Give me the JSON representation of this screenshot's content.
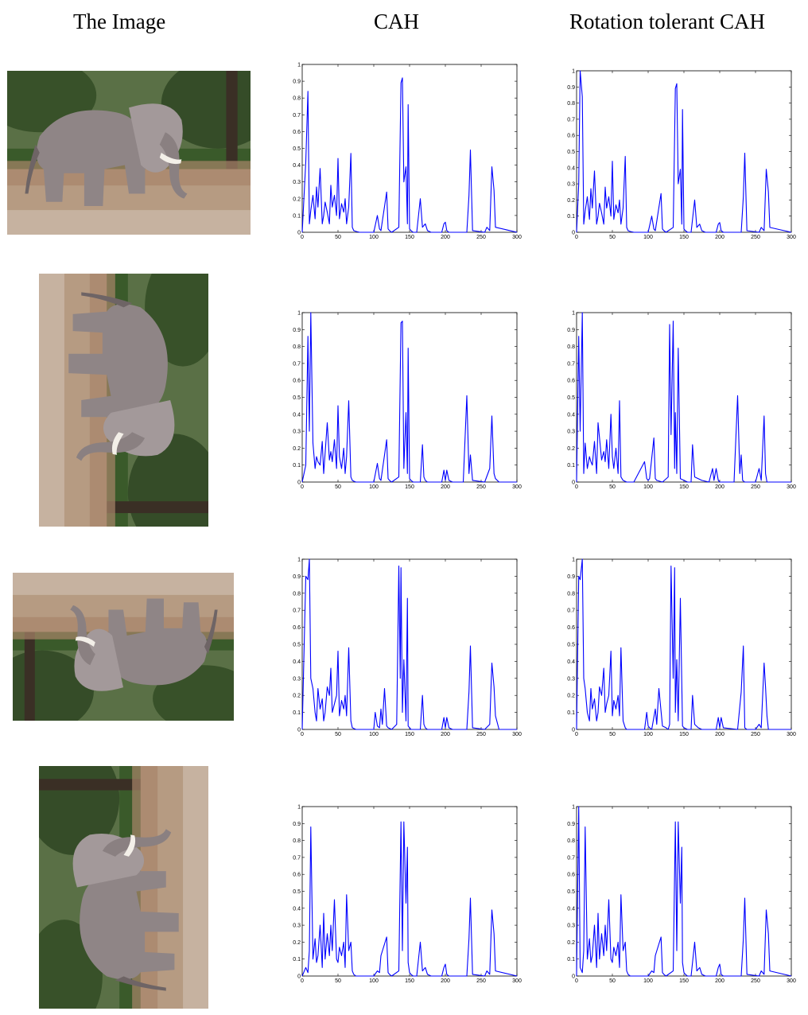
{
  "headers": {
    "image": "The Image",
    "cah": "CAH",
    "rotation": "Rotation tolerant CAH"
  },
  "colors": {
    "series": "#0000ff",
    "sky_foliage": "#3a5a2a",
    "ground": "#b69b82",
    "elephant": "#8f8586"
  },
  "image_rotations_deg": [
    0,
    90,
    180,
    270
  ],
  "chart_data": [
    {
      "row": 1,
      "column": "CAH",
      "type": "line",
      "xlim": [
        0,
        300
      ],
      "ylim": [
        0,
        1
      ],
      "xticks": [
        "0",
        "50",
        "100",
        "150",
        "200",
        "250",
        "300"
      ],
      "yticks": [
        "0",
        "0.1",
        "0.2",
        "0.3",
        "0.4",
        "0.5",
        "0.6",
        "0.7",
        "0.8",
        "0.9",
        "1"
      ],
      "x": [
        0,
        5,
        8,
        10,
        12,
        15,
        18,
        20,
        22,
        25,
        28,
        30,
        32,
        35,
        38,
        40,
        42,
        45,
        48,
        50,
        52,
        55,
        58,
        60,
        62,
        65,
        68,
        70,
        72,
        75,
        80,
        100,
        105,
        108,
        110,
        118,
        120,
        122,
        125,
        135,
        138,
        140,
        142,
        145,
        147,
        148,
        150,
        152,
        155,
        160,
        165,
        168,
        172,
        175,
        180,
        195,
        198,
        200,
        202,
        205,
        230,
        233,
        235,
        238,
        255,
        258,
        262,
        265,
        268,
        270,
        300
      ],
      "y": [
        0,
        0.42,
        0.84,
        0.05,
        0.13,
        0.22,
        0.08,
        0.27,
        0.15,
        0.38,
        0.05,
        0.1,
        0.18,
        0.12,
        0.05,
        0.28,
        0.15,
        0.22,
        0.1,
        0.44,
        0.08,
        0.17,
        0.12,
        0.2,
        0.05,
        0.15,
        0.47,
        0.03,
        0.01,
        0.005,
        0,
        0,
        0.1,
        0.02,
        0.01,
        0.24,
        0.02,
        0.01,
        0,
        0.03,
        0.89,
        0.92,
        0.3,
        0.39,
        0.05,
        0.76,
        0.02,
        0.01,
        0,
        0,
        0.2,
        0.03,
        0.05,
        0.01,
        0,
        0,
        0.05,
        0.06,
        0.01,
        0,
        0,
        0.22,
        0.49,
        0.01,
        0,
        0.03,
        0.01,
        0.39,
        0.25,
        0.03,
        0
      ]
    },
    {
      "row": 1,
      "column": "Rotation tolerant CAH",
      "type": "line",
      "xlim": [
        0,
        300
      ],
      "ylim": [
        0,
        1
      ],
      "xticks": [
        "0",
        "50",
        "100",
        "150",
        "200",
        "250",
        "300"
      ],
      "yticks": [
        "0",
        "0.1",
        "0.2",
        "0.3",
        "0.4",
        "0.5",
        "0.6",
        "0.7",
        "0.8",
        "0.9",
        "1"
      ],
      "x": [
        0,
        3,
        5,
        8,
        10,
        12,
        15,
        18,
        20,
        22,
        25,
        28,
        30,
        32,
        35,
        38,
        40,
        42,
        45,
        48,
        50,
        52,
        55,
        58,
        60,
        62,
        65,
        68,
        70,
        72,
        75,
        80,
        100,
        105,
        108,
        110,
        118,
        120,
        122,
        125,
        135,
        138,
        140,
        142,
        145,
        147,
        148,
        150,
        152,
        155,
        160,
        165,
        168,
        172,
        175,
        180,
        195,
        198,
        200,
        202,
        205,
        230,
        233,
        235,
        238,
        255,
        258,
        262,
        265,
        268,
        270,
        300
      ],
      "y": [
        0,
        0.3,
        1,
        0.84,
        0.05,
        0.13,
        0.22,
        0.08,
        0.27,
        0.15,
        0.38,
        0.05,
        0.1,
        0.18,
        0.12,
        0.05,
        0.28,
        0.15,
        0.22,
        0.1,
        0.44,
        0.08,
        0.17,
        0.12,
        0.2,
        0.05,
        0.15,
        0.47,
        0.03,
        0.01,
        0.005,
        0,
        0,
        0.1,
        0.02,
        0.01,
        0.24,
        0.02,
        0.01,
        0,
        0.03,
        0.89,
        0.92,
        0.3,
        0.39,
        0.05,
        0.76,
        0.02,
        0.01,
        0,
        0,
        0.2,
        0.03,
        0.05,
        0.01,
        0,
        0,
        0.05,
        0.06,
        0.01,
        0,
        0,
        0.22,
        0.49,
        0.01,
        0,
        0.03,
        0.01,
        0.39,
        0.25,
        0.03,
        0
      ]
    },
    {
      "row": 2,
      "column": "CAH",
      "type": "line",
      "xlim": [
        0,
        300
      ],
      "ylim": [
        0,
        1
      ],
      "xticks": [
        "0",
        "50",
        "100",
        "150",
        "200",
        "250",
        "300"
      ],
      "yticks": [
        "0",
        "0.1",
        "0.2",
        "0.3",
        "0.4",
        "0.5",
        "0.6",
        "0.7",
        "0.8",
        "0.9",
        "1"
      ],
      "x": [
        0,
        5,
        8,
        10,
        12,
        15,
        18,
        20,
        22,
        25,
        28,
        30,
        35,
        38,
        40,
        42,
        45,
        48,
        50,
        52,
        55,
        58,
        60,
        62,
        65,
        68,
        70,
        72,
        75,
        80,
        100,
        105,
        108,
        110,
        118,
        120,
        122,
        125,
        135,
        138,
        140,
        142,
        145,
        147,
        148,
        150,
        152,
        155,
        165,
        168,
        170,
        172,
        175,
        180,
        195,
        198,
        200,
        202,
        205,
        210,
        225,
        230,
        233,
        235,
        238,
        255,
        262,
        265,
        268,
        270,
        275,
        300
      ],
      "y": [
        0,
        0.1,
        0.86,
        0.3,
        1,
        0.23,
        0.08,
        0.15,
        0.12,
        0.1,
        0.24,
        0.05,
        0.35,
        0.13,
        0.18,
        0.12,
        0.25,
        0.08,
        0.45,
        0.15,
        0.08,
        0.2,
        0.05,
        0.15,
        0.48,
        0.03,
        0.01,
        0.005,
        0,
        0,
        0,
        0.11,
        0.02,
        0.01,
        0.25,
        0.02,
        0.01,
        0,
        0.03,
        0.94,
        0.95,
        0.08,
        0.41,
        0.05,
        0.79,
        0.02,
        0.01,
        0,
        0,
        0.22,
        0.03,
        0.01,
        0,
        0,
        0,
        0.07,
        0.01,
        0.07,
        0.01,
        0,
        0,
        0.51,
        0.05,
        0.16,
        0.01,
        0,
        0.08,
        0.39,
        0.05,
        0.02,
        0,
        0
      ]
    },
    {
      "row": 2,
      "column": "Rotation tolerant CAH",
      "type": "line",
      "xlim": [
        0,
        300
      ],
      "ylim": [
        0,
        1
      ],
      "xticks": [
        "0",
        "50",
        "100",
        "150",
        "200",
        "250",
        "300"
      ],
      "yticks": [
        "0",
        "0.1",
        "0.2",
        "0.3",
        "0.4",
        "0.5",
        "0.6",
        "0.7",
        "0.8",
        "0.9",
        "1"
      ],
      "x": [
        0,
        3,
        5,
        8,
        10,
        12,
        15,
        18,
        20,
        22,
        25,
        28,
        30,
        35,
        38,
        40,
        42,
        45,
        48,
        50,
        52,
        55,
        58,
        60,
        62,
        65,
        70,
        80,
        95,
        98,
        100,
        102,
        108,
        110,
        112,
        120,
        128,
        130,
        132,
        135,
        137,
        138,
        140,
        142,
        145,
        155,
        160,
        162,
        165,
        175,
        185,
        190,
        192,
        195,
        198,
        200,
        205,
        220,
        225,
        228,
        230,
        232,
        235,
        250,
        255,
        258,
        262,
        264,
        266,
        300
      ],
      "y": [
        0,
        0.86,
        0.3,
        1,
        0.05,
        0.23,
        0.08,
        0.15,
        0.12,
        0.1,
        0.24,
        0.05,
        0.35,
        0.13,
        0.18,
        0.12,
        0.25,
        0.08,
        0.4,
        0.15,
        0.08,
        0.2,
        0.05,
        0.48,
        0.03,
        0.01,
        0,
        0,
        0.12,
        0.02,
        0.01,
        0.02,
        0.26,
        0.02,
        0.01,
        0,
        0.03,
        0.93,
        0.28,
        0.95,
        0.08,
        0.41,
        0.05,
        0.79,
        0.02,
        0,
        0,
        0.22,
        0.03,
        0.01,
        0,
        0.08,
        0.01,
        0.08,
        0.01,
        0,
        0,
        0,
        0.51,
        0.05,
        0.16,
        0.01,
        0,
        0,
        0.08,
        0.01,
        0.39,
        0.05,
        0,
        0
      ]
    },
    {
      "row": 3,
      "column": "CAH",
      "type": "line",
      "xlim": [
        0,
        300
      ],
      "ylim": [
        0,
        1
      ],
      "xticks": [
        "0",
        "50",
        "100",
        "150",
        "200",
        "250",
        "300"
      ],
      "yticks": [
        "0",
        "0.1",
        "0.2",
        "0.3",
        "0.4",
        "0.5",
        "0.6",
        "0.7",
        "0.8",
        "0.9",
        "1"
      ],
      "x": [
        0,
        5,
        8,
        10,
        12,
        15,
        18,
        20,
        22,
        25,
        28,
        30,
        32,
        35,
        38,
        40,
        42,
        45,
        48,
        50,
        52,
        55,
        58,
        60,
        62,
        65,
        68,
        70,
        75,
        80,
        100,
        102,
        105,
        108,
        110,
        112,
        115,
        118,
        120,
        125,
        132,
        135,
        137,
        138,
        140,
        142,
        145,
        147,
        148,
        150,
        152,
        155,
        165,
        168,
        170,
        172,
        175,
        180,
        195,
        198,
        200,
        202,
        205,
        210,
        230,
        233,
        235,
        238,
        255,
        262,
        265,
        268,
        270,
        275,
        300
      ],
      "y": [
        0,
        0.9,
        0.88,
        1,
        0.3,
        0.24,
        0.1,
        0.05,
        0.24,
        0.12,
        0.18,
        0.05,
        0.1,
        0.25,
        0.2,
        0.36,
        0.1,
        0.15,
        0.2,
        0.46,
        0.08,
        0.17,
        0.12,
        0.2,
        0.08,
        0.48,
        0.05,
        0.01,
        0,
        0,
        0,
        0.1,
        0.02,
        0.01,
        0.12,
        0.03,
        0.24,
        0.02,
        0.01,
        0,
        0.03,
        0.96,
        0.3,
        0.95,
        0.1,
        0.41,
        0.05,
        0.77,
        0.02,
        0.01,
        0,
        0,
        0,
        0.2,
        0.03,
        0.01,
        0,
        0,
        0,
        0.07,
        0.01,
        0.07,
        0.01,
        0,
        0,
        0.22,
        0.49,
        0.01,
        0,
        0.03,
        0.39,
        0.25,
        0.08,
        0,
        0
      ]
    },
    {
      "row": 3,
      "column": "Rotation tolerant CAH",
      "type": "line",
      "xlim": [
        0,
        300
      ],
      "ylim": [
        0,
        1
      ],
      "xticks": [
        "0",
        "50",
        "100",
        "150",
        "200",
        "250",
        "300"
      ],
      "yticks": [
        "0",
        "0.1",
        "0.2",
        "0.3",
        "0.4",
        "0.5",
        "0.6",
        "0.7",
        "0.8",
        "0.9",
        "1"
      ],
      "x": [
        0,
        3,
        5,
        8,
        10,
        12,
        15,
        18,
        20,
        22,
        25,
        28,
        30,
        32,
        35,
        38,
        40,
        42,
        45,
        48,
        50,
        52,
        55,
        58,
        60,
        62,
        65,
        68,
        70,
        75,
        95,
        98,
        100,
        102,
        105,
        110,
        112,
        115,
        120,
        125,
        128,
        130,
        132,
        135,
        137,
        138,
        140,
        142,
        145,
        148,
        150,
        155,
        160,
        162,
        165,
        170,
        175,
        185,
        195,
        198,
        200,
        202,
        205,
        225,
        230,
        233,
        235,
        238,
        250,
        255,
        258,
        262,
        264,
        266,
        268,
        300
      ],
      "y": [
        0,
        0.9,
        0.88,
        1,
        0.3,
        0.24,
        0.1,
        0.05,
        0.24,
        0.12,
        0.18,
        0.05,
        0.1,
        0.25,
        0.2,
        0.36,
        0.1,
        0.15,
        0.2,
        0.46,
        0.08,
        0.17,
        0.12,
        0.2,
        0.08,
        0.48,
        0.05,
        0.01,
        0,
        0,
        0,
        0.1,
        0.02,
        0.01,
        0,
        0.12,
        0.03,
        0.24,
        0.02,
        0.01,
        0,
        0.03,
        0.96,
        0.3,
        0.95,
        0.1,
        0.41,
        0.05,
        0.77,
        0.02,
        0.01,
        0,
        0,
        0.2,
        0.03,
        0.01,
        0,
        0,
        0,
        0.07,
        0.01,
        0.07,
        0.01,
        0,
        0.22,
        0.49,
        0.01,
        0,
        0,
        0.03,
        0.01,
        0.39,
        0.25,
        0.08,
        0,
        0
      ]
    },
    {
      "row": 4,
      "column": "CAH",
      "type": "line",
      "xlim": [
        0,
        300
      ],
      "ylim": [
        0,
        1
      ],
      "xticks": [
        "0",
        "50",
        "100",
        "150",
        "200",
        "250",
        "300"
      ],
      "yticks": [
        "0",
        "0.1",
        "0.2",
        "0.3",
        "0.4",
        "0.5",
        "0.6",
        "0.7",
        "0.8",
        "0.9",
        "1"
      ],
      "x": [
        0,
        5,
        8,
        10,
        12,
        15,
        18,
        20,
        22,
        25,
        28,
        30,
        32,
        35,
        38,
        40,
        42,
        45,
        48,
        50,
        52,
        55,
        58,
        60,
        62,
        65,
        68,
        70,
        72,
        75,
        80,
        100,
        105,
        108,
        110,
        118,
        120,
        122,
        125,
        135,
        138,
        140,
        142,
        145,
        147,
        148,
        150,
        152,
        155,
        160,
        165,
        168,
        172,
        175,
        180,
        195,
        198,
        200,
        202,
        205,
        230,
        233,
        235,
        238,
        255,
        258,
        262,
        265,
        268,
        270,
        300
      ],
      "y": [
        0,
        0.05,
        0.02,
        0.15,
        0.88,
        0.1,
        0.22,
        0.08,
        0.12,
        0.3,
        0.05,
        0.37,
        0.1,
        0.25,
        0.12,
        0.3,
        0.15,
        0.45,
        0.1,
        0.08,
        0.17,
        0.12,
        0.2,
        0.05,
        0.48,
        0.15,
        0.2,
        0.03,
        0.01,
        0,
        0,
        0,
        0.03,
        0.02,
        0.12,
        0.23,
        0.02,
        0.01,
        0,
        0.03,
        0.91,
        0.15,
        0.91,
        0.43,
        0.76,
        0.08,
        0.02,
        0.01,
        0,
        0,
        0.2,
        0.03,
        0.05,
        0.01,
        0,
        0,
        0.05,
        0.07,
        0.01,
        0,
        0,
        0.22,
        0.46,
        0.01,
        0,
        0.03,
        0.01,
        0.39,
        0.25,
        0.03,
        0
      ]
    },
    {
      "row": 4,
      "column": "Rotation tolerant CAH",
      "type": "line",
      "xlim": [
        0,
        300
      ],
      "ylim": [
        0,
        1
      ],
      "xticks": [
        "0",
        "50",
        "100",
        "150",
        "200",
        "250",
        "300"
      ],
      "yticks": [
        "0",
        "0.1",
        "0.2",
        "0.3",
        "0.4",
        "0.5",
        "0.6",
        "0.7",
        "0.8",
        "0.9",
        "1"
      ],
      "x": [
        0,
        3,
        5,
        8,
        10,
        12,
        15,
        18,
        20,
        22,
        25,
        28,
        30,
        32,
        35,
        38,
        40,
        42,
        45,
        48,
        50,
        52,
        55,
        58,
        60,
        62,
        65,
        68,
        70,
        72,
        75,
        80,
        100,
        105,
        108,
        110,
        118,
        120,
        122,
        125,
        135,
        138,
        140,
        142,
        145,
        147,
        148,
        150,
        152,
        155,
        160,
        165,
        168,
        172,
        175,
        180,
        195,
        198,
        200,
        202,
        205,
        230,
        233,
        235,
        238,
        255,
        258,
        262,
        265,
        268,
        270,
        300
      ],
      "y": [
        0,
        1,
        0.05,
        0.02,
        0.15,
        0.88,
        0.1,
        0.22,
        0.08,
        0.12,
        0.3,
        0.05,
        0.37,
        0.1,
        0.25,
        0.12,
        0.3,
        0.15,
        0.45,
        0.1,
        0.08,
        0.17,
        0.12,
        0.2,
        0.05,
        0.48,
        0.15,
        0.2,
        0.03,
        0.01,
        0,
        0,
        0,
        0.03,
        0.02,
        0.12,
        0.23,
        0.02,
        0.01,
        0,
        0.03,
        0.91,
        0.15,
        0.91,
        0.43,
        0.76,
        0.08,
        0.02,
        0.01,
        0,
        0,
        0.2,
        0.03,
        0.05,
        0.01,
        0,
        0,
        0.05,
        0.07,
        0.01,
        0,
        0,
        0.22,
        0.46,
        0.01,
        0,
        0.03,
        0.01,
        0.39,
        0.25,
        0.03,
        0
      ]
    }
  ]
}
